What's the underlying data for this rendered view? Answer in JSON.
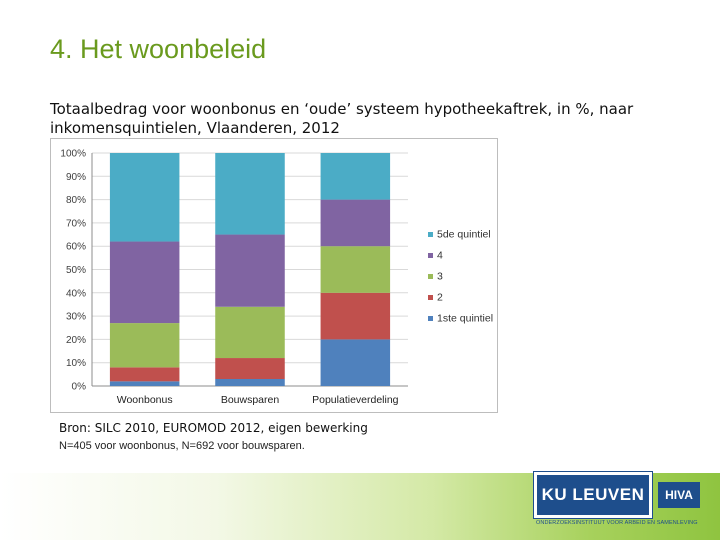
{
  "slide": {
    "title": "4. Het woonbeleid",
    "subtitle": "Totaalbedrag voor woonbonus en ‘oude’ systeem hypotheekaftrek, in %, naar inkomensquintielen, Vlaanderen, 2012",
    "source": "Bron: SILC 2010, EUROMOD 2012, eigen bewerking",
    "note": "N=405 voor woonbonus, N=692 voor bouwsparen."
  },
  "logos": {
    "ku_leuven": "KU LEUVEN",
    "hiva": "HIVA",
    "tagline": "ONDERZOEKSINSTITUUT VOOR ARBEID EN SAMENLEVING"
  },
  "chart_data": {
    "type": "bar",
    "stacked": true,
    "categories": [
      "Woonbonus",
      "Bouwsparen",
      "Populatieverdeling"
    ],
    "series": [
      {
        "name": "1ste quintiel",
        "color": "#4f81bd",
        "values": [
          2,
          3,
          20
        ]
      },
      {
        "name": "2",
        "color": "#c0504d",
        "values": [
          6,
          9,
          20
        ]
      },
      {
        "name": "3",
        "color": "#9bbb59",
        "values": [
          19,
          22,
          20
        ]
      },
      {
        "name": "4",
        "color": "#8064a2",
        "values": [
          35,
          31,
          20
        ]
      },
      {
        "name": "5de quintiel",
        "color": "#4bacc6",
        "values": [
          38,
          35,
          20
        ]
      }
    ],
    "ylim": [
      0,
      100
    ],
    "y_ticks": [
      "0%",
      "10%",
      "20%",
      "30%",
      "40%",
      "50%",
      "60%",
      "70%",
      "80%",
      "90%",
      "100%"
    ],
    "grid": true,
    "legend_position": "right"
  }
}
